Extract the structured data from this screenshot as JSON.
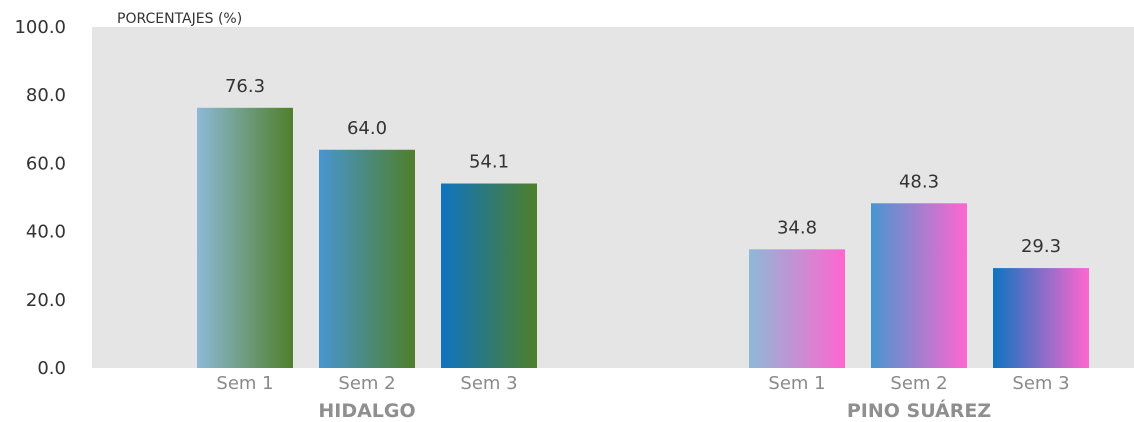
{
  "chart_data": {
    "type": "bar",
    "title": "",
    "ylabel": "PORCENTAJES (%)",
    "xlabel": "",
    "ylim": [
      0,
      100
    ],
    "yticks": [
      "0.0",
      "20.0",
      "40.0",
      "60.0",
      "80.0",
      "100.0"
    ],
    "grid": false,
    "groups": [
      {
        "name": "HIDALGO",
        "categories": [
          "Sem 1",
          "Sem 2",
          "Sem 3"
        ],
        "values": [
          76.3,
          64.0,
          54.1
        ],
        "value_labels": [
          "76.3",
          "64.0",
          "54.1"
        ]
      },
      {
        "name": "PINO SUÁREZ",
        "categories": [
          "Sem 1",
          "Sem 2",
          "Sem 3"
        ],
        "values": [
          34.8,
          48.3,
          29.3
        ],
        "value_labels": [
          "34.8",
          "48.3",
          "29.3"
        ]
      }
    ],
    "colors": {
      "plot_background": "#e5e5e5",
      "bar_start": [
        "#8db9d6",
        "#4896cf",
        "#0e74c0"
      ],
      "hidalgo_end": "#4f7f2a",
      "pino_suarez_end": "#ff66d0"
    }
  }
}
